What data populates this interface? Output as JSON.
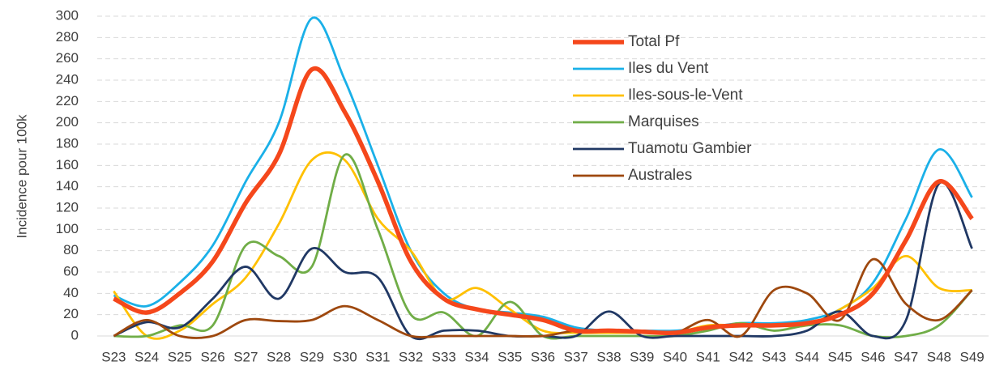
{
  "chart_data": {
    "type": "line",
    "y_label": "Incidence pour 100k",
    "categories": [
      "S23",
      "S24",
      "S25",
      "S26",
      "S27",
      "S28",
      "S29",
      "S30",
      "S31",
      "S32",
      "S33",
      "S34",
      "S35",
      "S36",
      "S37",
      "S38",
      "S39",
      "S40",
      "S41",
      "S42",
      "S43",
      "S44",
      "S45",
      "S46",
      "S47",
      "S48",
      "S49"
    ],
    "series": [
      {
        "name": "Total Pf",
        "color": "#f5471b",
        "values": [
          35,
          22,
          40,
          70,
          125,
          170,
          250,
          210,
          145,
          70,
          35,
          25,
          20,
          15,
          5,
          5,
          4,
          3,
          8,
          10,
          10,
          12,
          20,
          40,
          90,
          145,
          110
        ]
      },
      {
        "name": "Iles du Vent",
        "color": "#1ab0e8",
        "values": [
          38,
          28,
          50,
          85,
          145,
          200,
          298,
          240,
          160,
          80,
          40,
          25,
          22,
          18,
          8,
          5,
          5,
          5,
          8,
          12,
          12,
          15,
          25,
          50,
          110,
          175,
          130
        ]
      },
      {
        "name": "Iles-sous-le-Vent",
        "color": "#ffc000",
        "values": [
          42,
          0,
          5,
          30,
          55,
          105,
          165,
          165,
          110,
          80,
          35,
          45,
          25,
          5,
          3,
          3,
          3,
          3,
          10,
          10,
          10,
          10,
          25,
          45,
          75,
          45,
          43
        ]
      },
      {
        "name": "Marquises",
        "color": "#70ad47",
        "values": [
          0,
          0,
          10,
          10,
          85,
          75,
          65,
          170,
          100,
          20,
          22,
          0,
          32,
          0,
          0,
          0,
          0,
          0,
          5,
          12,
          5,
          10,
          10,
          0,
          0,
          10,
          43
        ]
      },
      {
        "name": "Tuamotu Gambier",
        "color": "#203864",
        "values": [
          0,
          13,
          8,
          35,
          65,
          35,
          82,
          60,
          55,
          0,
          5,
          5,
          0,
          0,
          0,
          23,
          0,
          0,
          0,
          0,
          0,
          5,
          23,
          0,
          15,
          143,
          82
        ]
      },
      {
        "name": "Australes",
        "color": "#9e480e",
        "values": [
          0,
          15,
          0,
          0,
          15,
          14,
          15,
          28,
          15,
          0,
          0,
          0,
          0,
          0,
          5,
          5,
          5,
          3,
          15,
          0,
          43,
          40,
          15,
          72,
          30,
          15,
          43
        ]
      }
    ],
    "ylim": [
      0,
      300
    ],
    "yticks": [
      0,
      20,
      40,
      60,
      80,
      100,
      120,
      140,
      160,
      180,
      200,
      220,
      240,
      260,
      280,
      300
    ],
    "grid": true
  }
}
